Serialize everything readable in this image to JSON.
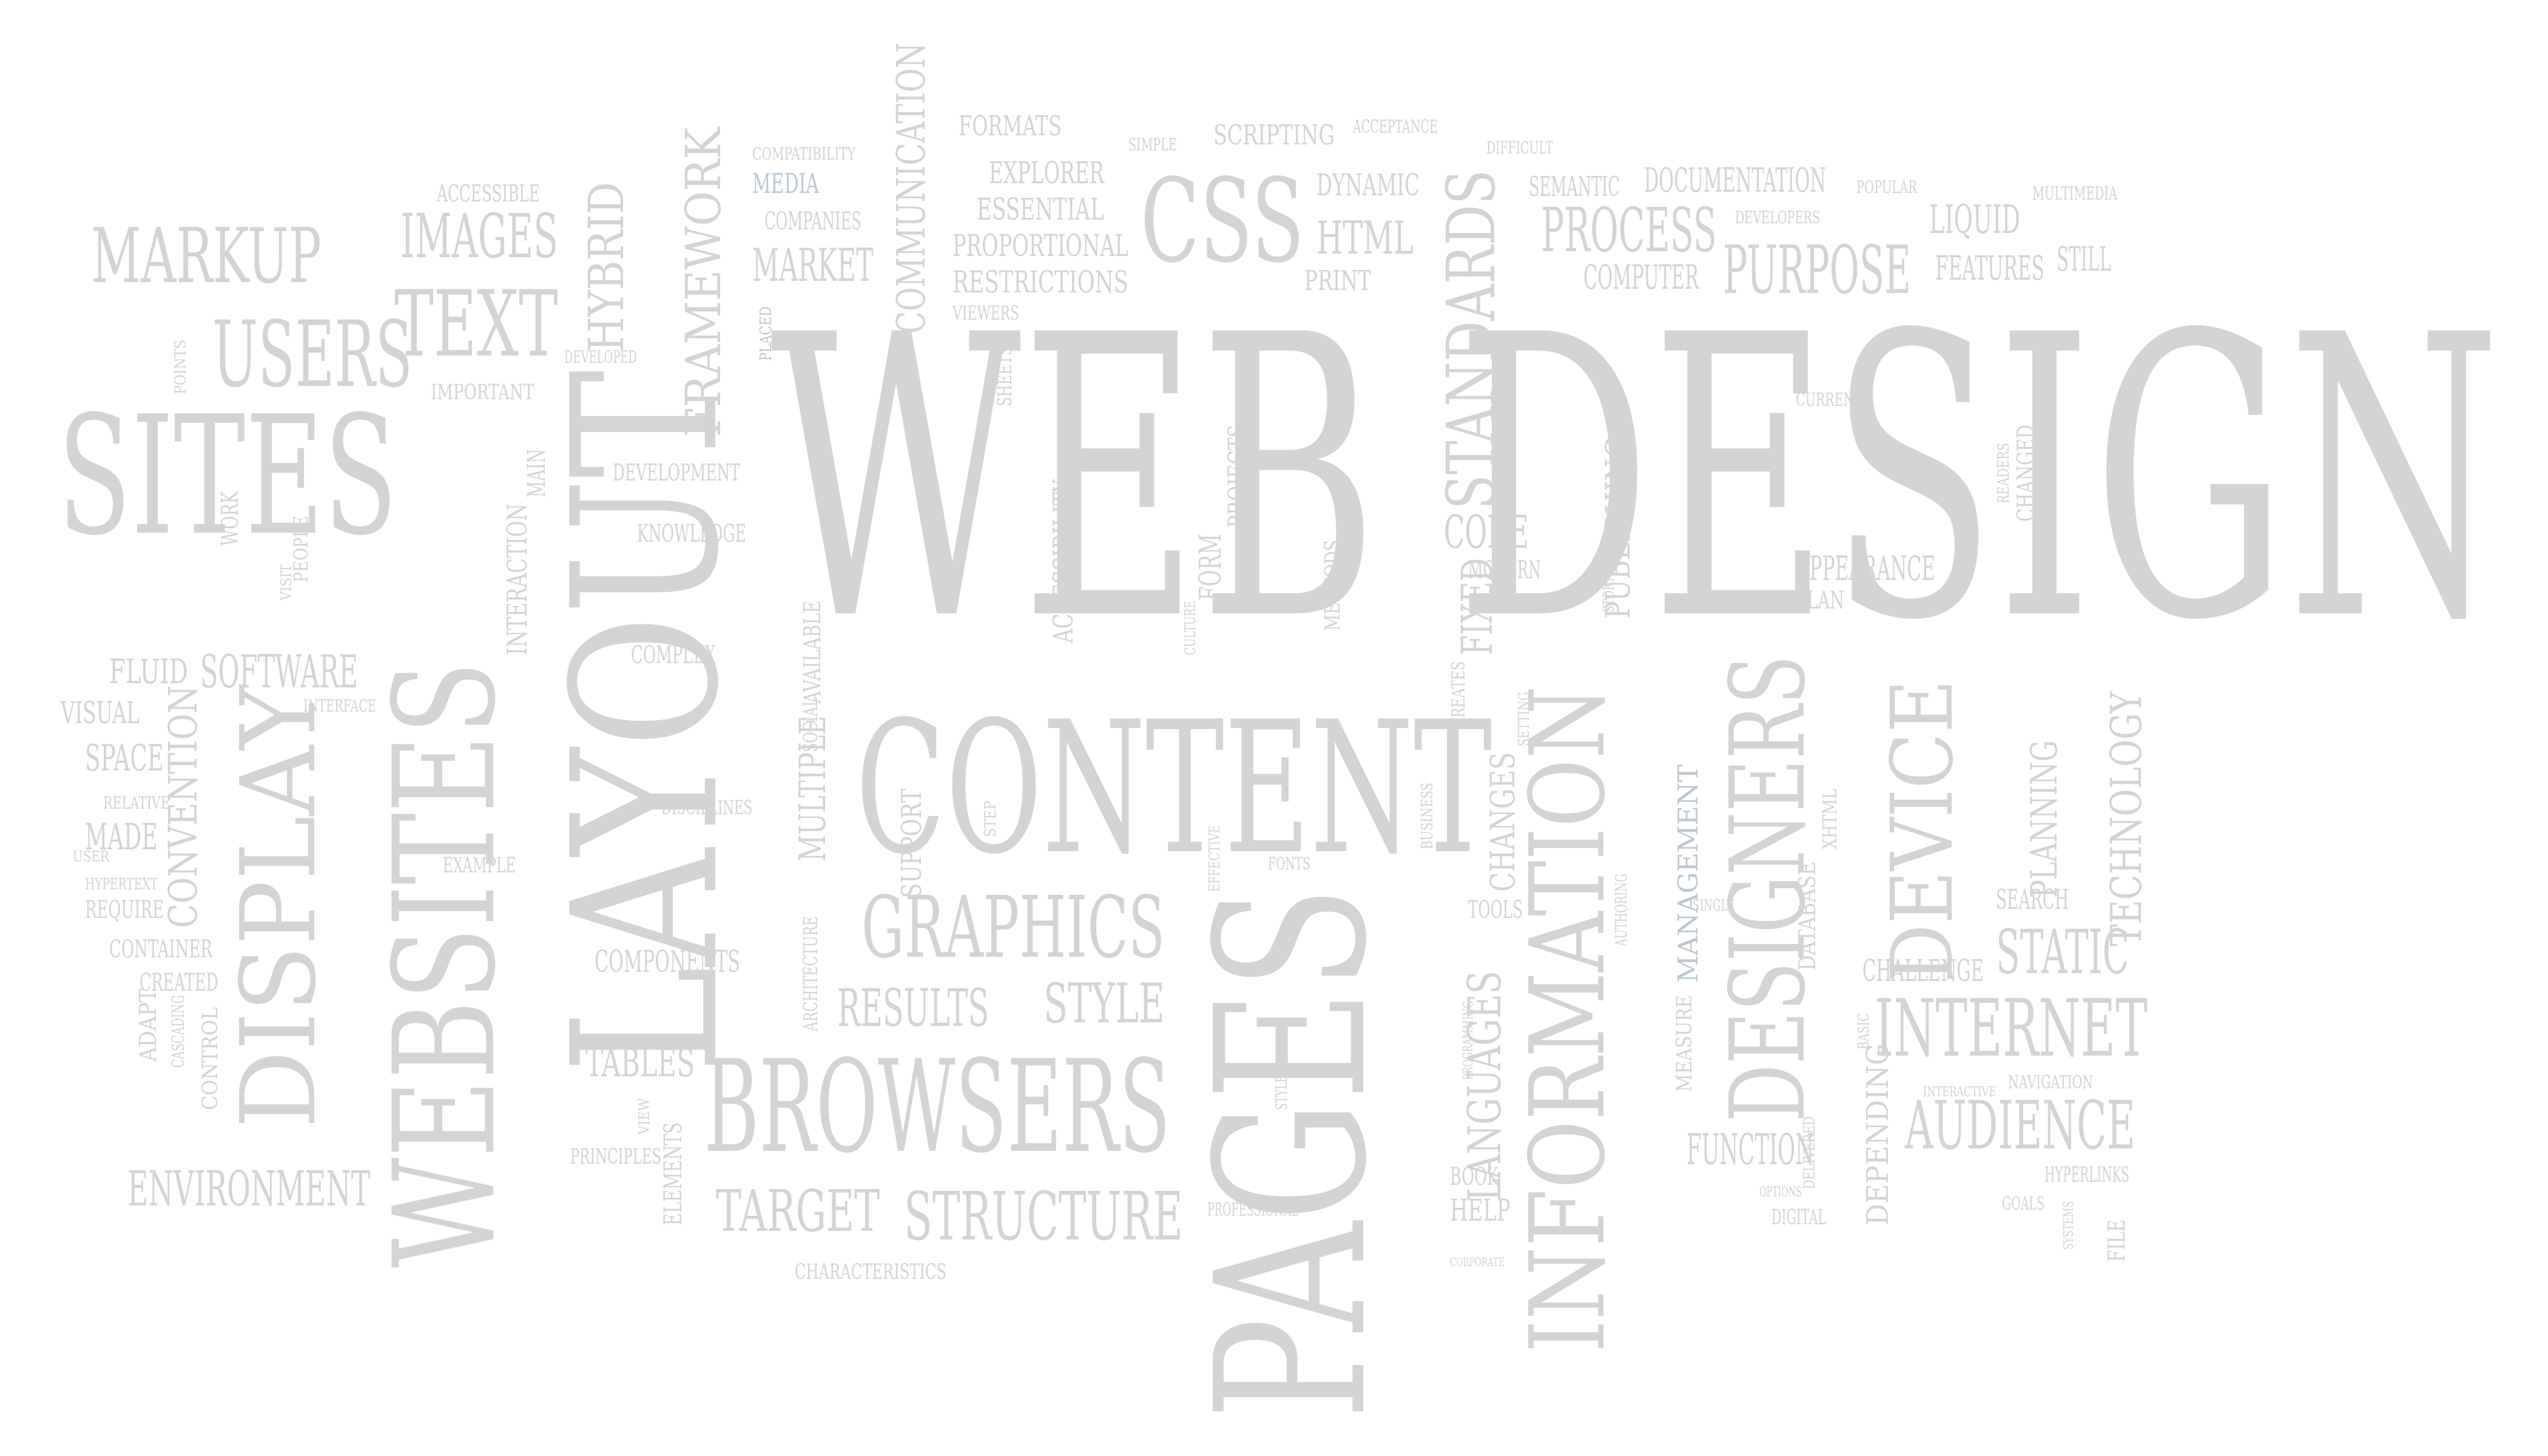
{
  "colors": {
    "background": "#ffffff",
    "word_fill": "#d4d4d4",
    "word_fill_mid": "#c9c9c9",
    "word_fill_dark": "#bdbdbd",
    "word_accent": "#bcc8d2"
  },
  "words": [
    {
      "text": "WEB DESIGN"
    },
    {
      "text": "CONTENT"
    },
    {
      "text": "PAGES"
    },
    {
      "text": "LAYOUT"
    },
    {
      "text": "SITES"
    },
    {
      "text": "WEBSITES"
    },
    {
      "text": "DISPLAY"
    },
    {
      "text": "INFORMATION"
    },
    {
      "text": "BROWSERS"
    },
    {
      "text": "DESIGNERS"
    },
    {
      "text": "DEVICE"
    },
    {
      "text": "INTERNET"
    },
    {
      "text": "CSS"
    },
    {
      "text": "GRAPHICS"
    },
    {
      "text": "STANDARDS"
    },
    {
      "text": "MARKUP"
    },
    {
      "text": "USERS"
    },
    {
      "text": "TEXT"
    },
    {
      "text": "IMAGES"
    },
    {
      "text": "AUDIENCE"
    },
    {
      "text": "STRUCTURE"
    },
    {
      "text": "PROCESS"
    },
    {
      "text": "PURPOSE"
    },
    {
      "text": "STATIC"
    },
    {
      "text": "TECHNOLOGY"
    },
    {
      "text": "FRAMEWORK"
    },
    {
      "text": "HYBRID"
    },
    {
      "text": "ENVIRONMENT"
    },
    {
      "text": "STYLE"
    },
    {
      "text": "RESULTS"
    },
    {
      "text": "TARGET"
    },
    {
      "text": "SOFTWARE"
    },
    {
      "text": "CONVENTION"
    },
    {
      "text": "LANGUAGES"
    },
    {
      "text": "COMMUNICATION"
    },
    {
      "text": "MARKET"
    },
    {
      "text": "HTML"
    },
    {
      "text": "CODE"
    },
    {
      "text": "FIXED"
    },
    {
      "text": "PLANNING"
    },
    {
      "text": "FUNCTION"
    },
    {
      "text": "DOCUMENTATION"
    },
    {
      "text": "SEMANTIC"
    },
    {
      "text": "LIQUID"
    },
    {
      "text": "FEATURES"
    },
    {
      "text": "STILL"
    },
    {
      "text": "COMPUTER"
    },
    {
      "text": "PUBLISHING"
    },
    {
      "text": "MANAGEMENT"
    },
    {
      "text": "APPEARANCE"
    },
    {
      "text": "DEPENDING"
    },
    {
      "text": "CHALLENGE"
    },
    {
      "text": "SEARCH"
    },
    {
      "text": "MULTIPLE"
    },
    {
      "text": "TABLES"
    },
    {
      "text": "COMPONENTS"
    },
    {
      "text": "KNOWLEDGE"
    },
    {
      "text": "DEVELOPMENT"
    },
    {
      "text": "COMPLEX"
    },
    {
      "text": "ACCESSIBILITY"
    },
    {
      "text": "PROPORTIONAL"
    },
    {
      "text": "RESTRICTIONS"
    },
    {
      "text": "EXPLORER"
    },
    {
      "text": "ESSENTIAL"
    },
    {
      "text": "FORMATS"
    },
    {
      "text": "SCRIPTING"
    },
    {
      "text": "DYNAMIC"
    },
    {
      "text": "PRINT"
    },
    {
      "text": "MEDIA"
    },
    {
      "text": "COMPANIES"
    },
    {
      "text": "FLUID"
    },
    {
      "text": "VISUAL"
    },
    {
      "text": "SPACE"
    },
    {
      "text": "MADE"
    },
    {
      "text": "REQUIRE"
    },
    {
      "text": "CONTAINER"
    },
    {
      "text": "CREATED"
    },
    {
      "text": "CONTROL"
    },
    {
      "text": "ADAPT"
    },
    {
      "text": "INTERACTION"
    },
    {
      "text": "MAIN"
    },
    {
      "text": "IMPORTANT"
    },
    {
      "text": "ACCESSIBLE"
    },
    {
      "text": "EXAMPLE"
    },
    {
      "text": "PRINCIPLES"
    },
    {
      "text": "ELEMENTS"
    },
    {
      "text": "HELP"
    },
    {
      "text": "BOOK"
    },
    {
      "text": "TOOLS"
    },
    {
      "text": "CHANGES"
    },
    {
      "text": "MODERN"
    },
    {
      "text": "FORM"
    },
    {
      "text": "PROJECTS"
    },
    {
      "text": "METHODS"
    },
    {
      "text": "CHARACTERISTICS"
    },
    {
      "text": "PROFESSIONAL"
    },
    {
      "text": "HYPERLINKS"
    },
    {
      "text": "NAVIGATION"
    },
    {
      "text": "GOALS"
    },
    {
      "text": "FILE"
    },
    {
      "text": "DIGITAL"
    },
    {
      "text": "PLAN"
    },
    {
      "text": "CURRENT"
    },
    {
      "text": "CHANGED"
    },
    {
      "text": "DATABASE"
    },
    {
      "text": "XHTML"
    },
    {
      "text": "MEASURE"
    },
    {
      "text": "MULTIMEDIA"
    },
    {
      "text": "DEVELOPERS"
    },
    {
      "text": "POPULAR"
    },
    {
      "text": "SIMPLE"
    },
    {
      "text": "ACCEPTANCE"
    },
    {
      "text": "DIFFICULT"
    },
    {
      "text": "COMPATIBILITY"
    },
    {
      "text": "VIEWERS"
    },
    {
      "text": "SHEETS"
    },
    {
      "text": "PEOPLE"
    },
    {
      "text": "WORK"
    },
    {
      "text": "INTERFACE"
    },
    {
      "text": "DISCIPLINES"
    },
    {
      "text": "SUPPORT"
    },
    {
      "text": "SOCIAL"
    },
    {
      "text": "AVAILABLE"
    },
    {
      "text": "ARCHITECTURE"
    },
    {
      "text": "DEVELOPED"
    },
    {
      "text": "CASCADING"
    },
    {
      "text": "HYPERTEXT"
    },
    {
      "text": "RELATIVE"
    },
    {
      "text": "USER"
    },
    {
      "text": "STEP"
    },
    {
      "text": "FONTS"
    },
    {
      "text": "STYLES"
    },
    {
      "text": "PROGRAMMING"
    },
    {
      "text": "BUSINESS"
    },
    {
      "text": "CREATES"
    },
    {
      "text": "AUTHORING"
    },
    {
      "text": "SINGLE"
    },
    {
      "text": "OPTIONS"
    },
    {
      "text": "VIEW"
    },
    {
      "text": "PLACED"
    },
    {
      "text": "POINTS"
    },
    {
      "text": "VISIT"
    },
    {
      "text": "EFFECTIVE"
    },
    {
      "text": "CULTURE"
    },
    {
      "text": "READERS"
    },
    {
      "text": "BASIC"
    },
    {
      "text": "DELIVERED"
    },
    {
      "text": "STORY"
    },
    {
      "text": "SETTING"
    },
    {
      "text": "CORPORATE"
    },
    {
      "text": "SYSTEMS"
    },
    {
      "text": "INTERACTIVE"
    }
  ]
}
